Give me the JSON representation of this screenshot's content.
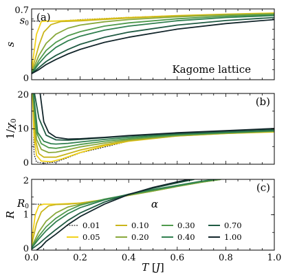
{
  "legend": {
    "title": "α",
    "entries": [
      {
        "label": "0.01",
        "color": "#000000",
        "style": "dashed"
      },
      {
        "label": "0.05",
        "color": "#f2d21b"
      },
      {
        "label": "0.10",
        "color": "#c9b51a"
      },
      {
        "label": "0.20",
        "color": "#88a83a"
      },
      {
        "label": "0.30",
        "color": "#4f9a4c"
      },
      {
        "label": "0.40",
        "color": "#2f7f4e"
      },
      {
        "label": "0.70",
        "color": "#1f5a42"
      },
      {
        "label": "1.00",
        "color": "#12252a"
      }
    ]
  },
  "chart_data": [
    {
      "type": "line",
      "panel_label": "(a)",
      "annotation": "Kagome lattice",
      "ylabel": "s",
      "ylim": [
        0,
        0.7
      ],
      "yticks": [
        "0",
        "0.7"
      ],
      "ytick_special": {
        "label": "s0",
        "value": 0.58
      },
      "xlim": [
        0,
        1
      ],
      "series": [
        {
          "name": "0.01",
          "x": [
            0.01,
            0.03,
            0.1,
            0.2,
            0.4,
            0.6,
            0.8,
            1.0
          ],
          "values": [
            0.58,
            0.58,
            0.58,
            0.595,
            0.618,
            0.635,
            0.648,
            0.66
          ]
        },
        {
          "name": "0.05",
          "x": [
            0.0,
            0.02,
            0.04,
            0.06,
            0.1,
            0.2,
            0.4,
            0.6,
            0.8,
            1.0
          ],
          "values": [
            0.1,
            0.45,
            0.575,
            0.58,
            0.58,
            0.59,
            0.615,
            0.635,
            0.648,
            0.66
          ]
        },
        {
          "name": "0.10",
          "x": [
            0.0,
            0.03,
            0.05,
            0.08,
            0.12,
            0.2,
            0.4,
            0.6,
            0.8,
            1.0
          ],
          "values": [
            0.08,
            0.34,
            0.47,
            0.545,
            0.575,
            0.582,
            0.61,
            0.632,
            0.646,
            0.655
          ]
        },
        {
          "name": "0.20",
          "x": [
            0.0,
            0.03,
            0.06,
            0.1,
            0.15,
            0.2,
            0.3,
            0.4,
            0.6,
            0.8,
            1.0
          ],
          "values": [
            0.07,
            0.24,
            0.36,
            0.45,
            0.51,
            0.54,
            0.573,
            0.595,
            0.622,
            0.64,
            0.652
          ]
        },
        {
          "name": "0.30",
          "x": [
            0.0,
            0.03,
            0.06,
            0.1,
            0.15,
            0.2,
            0.3,
            0.4,
            0.6,
            0.8,
            1.0
          ],
          "values": [
            0.06,
            0.19,
            0.29,
            0.37,
            0.435,
            0.475,
            0.53,
            0.562,
            0.603,
            0.628,
            0.645
          ]
        },
        {
          "name": "0.40",
          "x": [
            0.0,
            0.03,
            0.06,
            0.1,
            0.15,
            0.2,
            0.3,
            0.4,
            0.6,
            0.8,
            1.0
          ],
          "values": [
            0.06,
            0.16,
            0.24,
            0.32,
            0.385,
            0.43,
            0.49,
            0.53,
            0.583,
            0.615,
            0.635
          ]
        },
        {
          "name": "0.70",
          "x": [
            0.0,
            0.03,
            0.06,
            0.1,
            0.15,
            0.2,
            0.3,
            0.4,
            0.6,
            0.8,
            1.0
          ],
          "values": [
            0.06,
            0.12,
            0.18,
            0.24,
            0.3,
            0.35,
            0.42,
            0.47,
            0.54,
            0.585,
            0.615
          ]
        },
        {
          "name": "1.00",
          "x": [
            0.0,
            0.03,
            0.06,
            0.1,
            0.15,
            0.2,
            0.3,
            0.4,
            0.6,
            0.8,
            1.0
          ],
          "values": [
            0.06,
            0.1,
            0.15,
            0.2,
            0.255,
            0.3,
            0.37,
            0.42,
            0.5,
            0.555,
            0.595
          ]
        }
      ]
    },
    {
      "type": "line",
      "panel_label": "(b)",
      "ylabel": "1/χ0",
      "ylim": [
        0,
        20
      ],
      "yticks": [
        "0",
        "10",
        "20"
      ],
      "xlim": [
        0,
        1
      ],
      "series": [
        {
          "name": "0.01",
          "x": [
            0.005,
            0.01,
            0.02,
            0.05,
            0.1,
            0.2,
            0.4,
            0.6,
            0.8,
            1.0
          ],
          "values": [
            20,
            3,
            0.6,
            0.3,
            0.6,
            3.2,
            6.5,
            8.0,
            8.7,
            9.1
          ]
        },
        {
          "name": "0.05",
          "x": [
            0.003,
            0.01,
            0.02,
            0.04,
            0.08,
            0.12,
            0.2,
            0.3,
            0.4,
            0.6,
            0.8,
            1.0
          ],
          "values": [
            20,
            8,
            2.5,
            0.9,
            0.7,
            1.4,
            3.3,
            5.2,
            6.5,
            8.0,
            8.7,
            9.1
          ]
        },
        {
          "name": "0.10",
          "x": [
            0.004,
            0.015,
            0.03,
            0.05,
            0.1,
            0.15,
            0.2,
            0.3,
            0.4,
            0.6,
            0.8,
            1.0
          ],
          "values": [
            20,
            7,
            3.0,
            2.0,
            2.0,
            3.0,
            4.0,
            5.5,
            6.6,
            8.0,
            8.7,
            9.2
          ]
        },
        {
          "name": "0.20",
          "x": [
            0.005,
            0.02,
            0.04,
            0.07,
            0.1,
            0.15,
            0.2,
            0.3,
            0.4,
            0.6,
            0.8,
            1.0
          ],
          "values": [
            20,
            7,
            4.2,
            3.3,
            3.4,
            4.1,
            4.9,
            6.0,
            6.9,
            8.1,
            8.8,
            9.3
          ]
        },
        {
          "name": "0.30",
          "x": [
            0.006,
            0.02,
            0.04,
            0.07,
            0.1,
            0.15,
            0.2,
            0.3,
            0.4,
            0.6,
            0.8,
            1.0
          ],
          "values": [
            20,
            9,
            5.8,
            4.7,
            4.5,
            5.0,
            5.6,
            6.5,
            7.2,
            8.3,
            8.9,
            9.4
          ]
        },
        {
          "name": "0.40",
          "x": [
            0.008,
            0.025,
            0.05,
            0.08,
            0.1,
            0.15,
            0.2,
            0.3,
            0.4,
            0.6,
            0.8,
            1.0
          ],
          "values": [
            20,
            9,
            6.5,
            5.8,
            5.7,
            5.9,
            6.3,
            7.0,
            7.6,
            8.5,
            9.0,
            9.5
          ]
        },
        {
          "name": "0.70",
          "x": [
            0.012,
            0.03,
            0.06,
            0.1,
            0.15,
            0.2,
            0.3,
            0.4,
            0.6,
            0.8,
            1.0
          ],
          "values": [
            20,
            13,
            8.2,
            6.9,
            6.8,
            7.0,
            7.5,
            8.0,
            8.7,
            9.3,
            9.8
          ]
        },
        {
          "name": "1.00",
          "x": [
            0.035,
            0.05,
            0.07,
            0.1,
            0.15,
            0.2,
            0.3,
            0.4,
            0.6,
            0.8,
            1.0
          ],
          "values": [
            20,
            12,
            9.0,
            7.6,
            7.1,
            7.2,
            7.6,
            8.1,
            8.9,
            9.5,
            10.1
          ]
        }
      ]
    },
    {
      "type": "line",
      "panel_label": "(c)",
      "ylabel": "R",
      "ylim": [
        0,
        2
      ],
      "yticks": [
        "0",
        "1",
        "2"
      ],
      "ytick_special": {
        "label": "R0",
        "value": 1.3
      },
      "xlabel": "T [J]",
      "xlim": [
        0,
        1
      ],
      "xticks": [
        "0.0",
        "0.2",
        "0.4",
        "0.6",
        "0.8",
        "1.0"
      ],
      "series": [
        {
          "name": "0.01",
          "x": [
            0.005,
            0.02,
            0.1,
            0.2,
            0.3,
            0.4,
            0.5,
            0.6,
            0.7,
            0.78
          ],
          "values": [
            1.3,
            1.3,
            1.3,
            1.33,
            1.43,
            1.55,
            1.67,
            1.8,
            1.92,
            2.0
          ]
        },
        {
          "name": "0.05",
          "x": [
            0.0,
            0.015,
            0.03,
            0.05,
            0.1,
            0.2,
            0.3,
            0.4,
            0.5,
            0.6,
            0.7,
            0.78
          ],
          "values": [
            0.25,
            1.0,
            1.26,
            1.3,
            1.3,
            1.33,
            1.43,
            1.55,
            1.67,
            1.8,
            1.92,
            2.0
          ]
        },
        {
          "name": "0.10",
          "x": [
            0.0,
            0.02,
            0.04,
            0.07,
            0.1,
            0.15,
            0.2,
            0.3,
            0.4,
            0.5,
            0.6,
            0.7,
            0.78
          ],
          "values": [
            0.15,
            0.75,
            1.08,
            1.25,
            1.29,
            1.3,
            1.33,
            1.43,
            1.55,
            1.67,
            1.8,
            1.92,
            2.0
          ]
        },
        {
          "name": "0.20",
          "x": [
            0.0,
            0.03,
            0.06,
            0.1,
            0.15,
            0.2,
            0.3,
            0.4,
            0.5,
            0.6,
            0.7,
            0.78
          ],
          "values": [
            0.1,
            0.52,
            0.82,
            1.05,
            1.22,
            1.3,
            1.43,
            1.55,
            1.67,
            1.8,
            1.92,
            2.0
          ]
        },
        {
          "name": "0.30",
          "x": [
            0.0,
            0.03,
            0.06,
            0.1,
            0.15,
            0.2,
            0.3,
            0.4,
            0.5,
            0.6,
            0.7,
            0.78
          ],
          "values": [
            0.08,
            0.4,
            0.66,
            0.9,
            1.12,
            1.27,
            1.44,
            1.57,
            1.69,
            1.81,
            1.93,
            2.0
          ]
        },
        {
          "name": "0.40",
          "x": [
            0.0,
            0.03,
            0.06,
            0.1,
            0.15,
            0.2,
            0.3,
            0.4,
            0.5,
            0.6,
            0.7,
            0.76
          ],
          "values": [
            0.06,
            0.32,
            0.55,
            0.8,
            1.03,
            1.2,
            1.42,
            1.58,
            1.71,
            1.83,
            1.95,
            2.0
          ]
        },
        {
          "name": "0.70",
          "x": [
            0.0,
            0.03,
            0.06,
            0.1,
            0.15,
            0.2,
            0.3,
            0.4,
            0.5,
            0.6,
            0.67
          ],
          "values": [
            0.03,
            0.18,
            0.36,
            0.58,
            0.84,
            1.05,
            1.36,
            1.58,
            1.75,
            1.9,
            2.0
          ]
        },
        {
          "name": "1.00",
          "x": [
            0.02,
            0.04,
            0.06,
            0.1,
            0.15,
            0.2,
            0.3,
            0.4,
            0.5,
            0.6,
            0.65
          ],
          "values": [
            0.0,
            0.1,
            0.25,
            0.45,
            0.72,
            0.95,
            1.3,
            1.57,
            1.77,
            1.93,
            2.0
          ]
        }
      ]
    }
  ]
}
